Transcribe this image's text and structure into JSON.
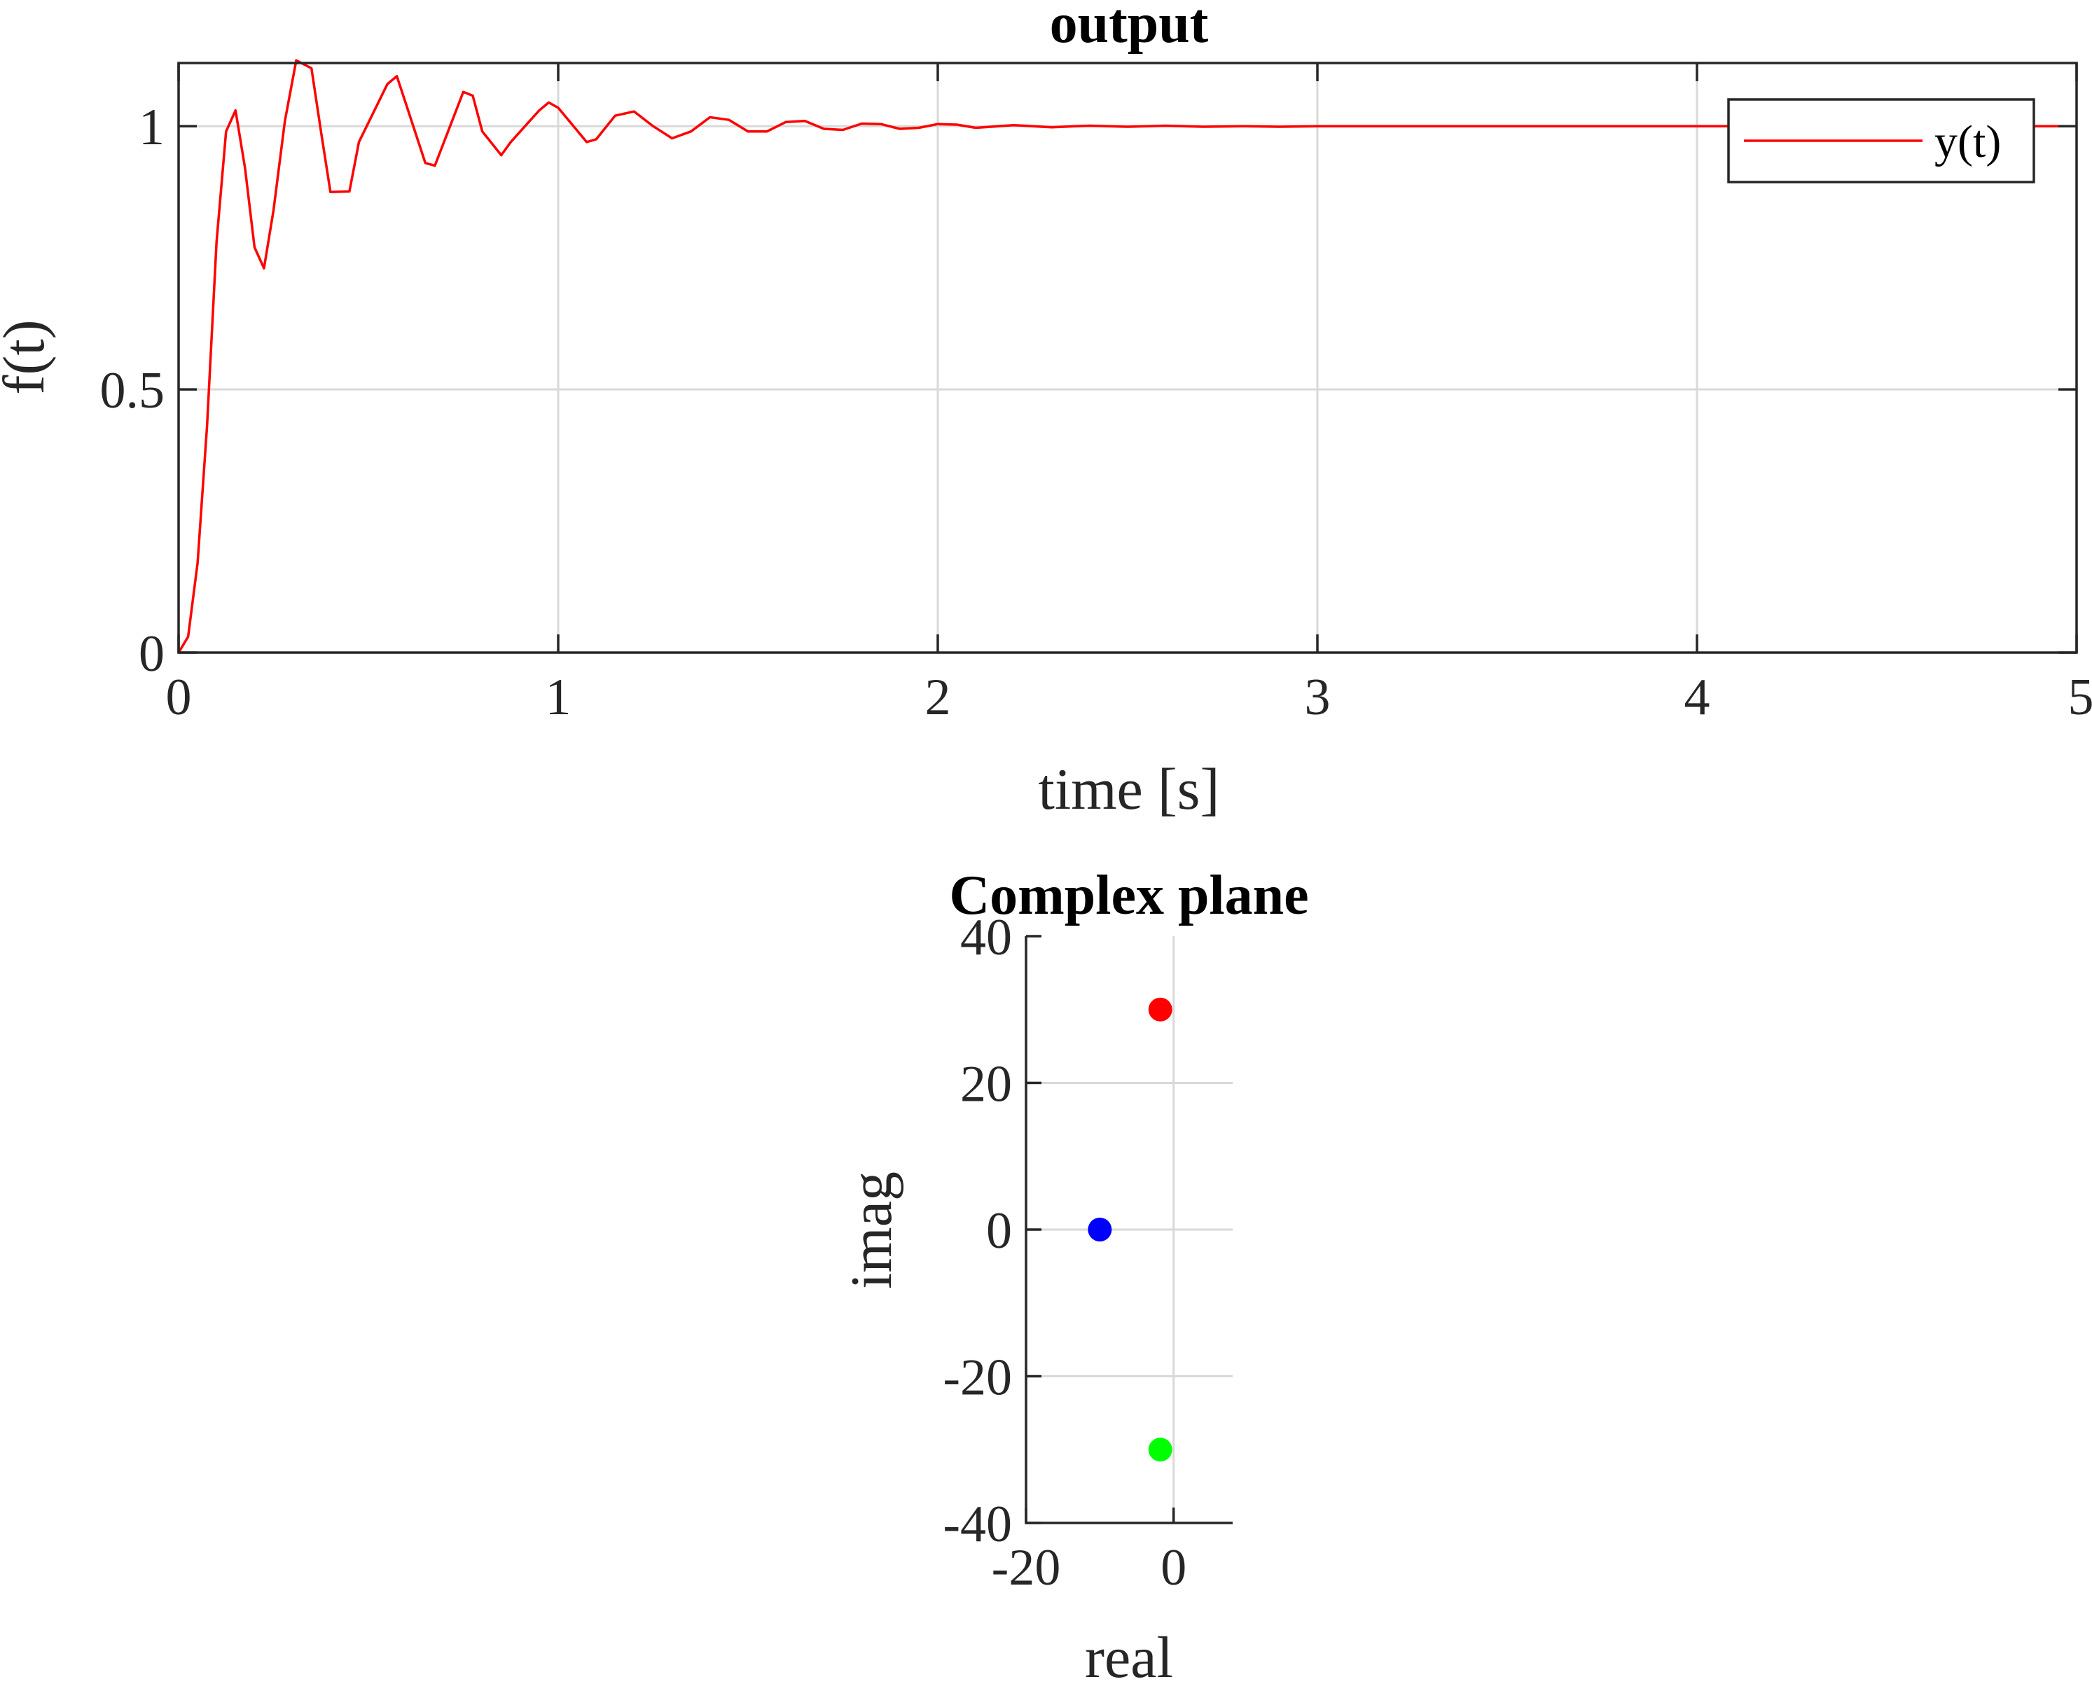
{
  "chart_data": [
    {
      "type": "line",
      "title": "output",
      "xlabel": "time [s]",
      "ylabel": "f(t)",
      "xlim": [
        0,
        5
      ],
      "ylim": [
        0,
        1.12
      ],
      "xticks": [
        0,
        1,
        2,
        3,
        4,
        5
      ],
      "yticks": [
        0,
        0.5,
        1
      ],
      "xtick_labels": [
        "0",
        "1",
        "2",
        "3",
        "4",
        "5"
      ],
      "ytick_labels": [
        "0",
        "0.5",
        "1"
      ],
      "grid": true,
      "legend": {
        "location": "top-right",
        "entries": [
          "y(t)"
        ]
      },
      "series": [
        {
          "name": "y(t)",
          "color": "#ff0000",
          "x": [
            0,
            0.025,
            0.05,
            0.075,
            0.1,
            0.125,
            0.15,
            0.175,
            0.2,
            0.225,
            0.25,
            0.28,
            0.31,
            0.35,
            0.375,
            0.4,
            0.45,
            0.475,
            0.55,
            0.575,
            0.6,
            0.65,
            0.675,
            0.75,
            0.775,
            0.8,
            0.85,
            0.875,
            0.95,
            0.975,
            1.0,
            1.075,
            1.1,
            1.15,
            1.2,
            1.25,
            1.3,
            1.35,
            1.4,
            1.45,
            1.5,
            1.55,
            1.6,
            1.65,
            1.7,
            1.75,
            1.8,
            1.85,
            1.9,
            1.95,
            2.0,
            2.05,
            2.1,
            2.2,
            2.3,
            2.4,
            2.5,
            2.6,
            2.7,
            2.8,
            2.9,
            3.0,
            3.2,
            3.4,
            3.6,
            3.8,
            4.0,
            4.2,
            4.5,
            5.0
          ],
          "y": [
            0,
            0.03,
            0.17,
            0.43,
            0.78,
            0.99,
            1.03,
            0.92,
            0.77,
            0.73,
            0.84,
            1.01,
            1.125,
            1.11,
            0.99,
            0.875,
            0.876,
            0.97,
            1.08,
            1.095,
            1.04,
            0.93,
            0.925,
            1.065,
            1.058,
            0.99,
            0.945,
            0.97,
            1.03,
            1.045,
            1.035,
            0.97,
            0.975,
            1.02,
            1.028,
            1.0,
            0.977,
            0.99,
            1.017,
            1.012,
            0.99,
            0.99,
            1.008,
            1.01,
            0.995,
            0.993,
            1.005,
            1.004,
            0.995,
            0.997,
            1.004,
            1.003,
            0.997,
            1.002,
            0.998,
            1.001,
            0.999,
            1.001,
            0.999,
            1.0,
            0.999,
            1.0,
            1.0,
            1.0,
            1.0,
            1.0,
            1.0,
            1.0,
            1.0,
            1.0
          ]
        }
      ]
    },
    {
      "type": "scatter",
      "title": "Complex plane",
      "xlabel": "real",
      "ylabel": "imag",
      "xlim": [
        -20,
        8
      ],
      "ylim": [
        -40,
        40
      ],
      "xticks": [
        -20,
        0
      ],
      "yticks": [
        -40,
        -20,
        0,
        20,
        40
      ],
      "xtick_labels": [
        "-20",
        "0"
      ],
      "ytick_labels": [
        "-40",
        "-20",
        "0",
        "20",
        "40"
      ],
      "grid": true,
      "points": [
        {
          "x": -10,
          "y": 0,
          "color": "#0000ff"
        },
        {
          "x": -1.8,
          "y": 30,
          "color": "#ff0000"
        },
        {
          "x": -1.8,
          "y": -30,
          "color": "#00ff00"
        }
      ]
    }
  ]
}
